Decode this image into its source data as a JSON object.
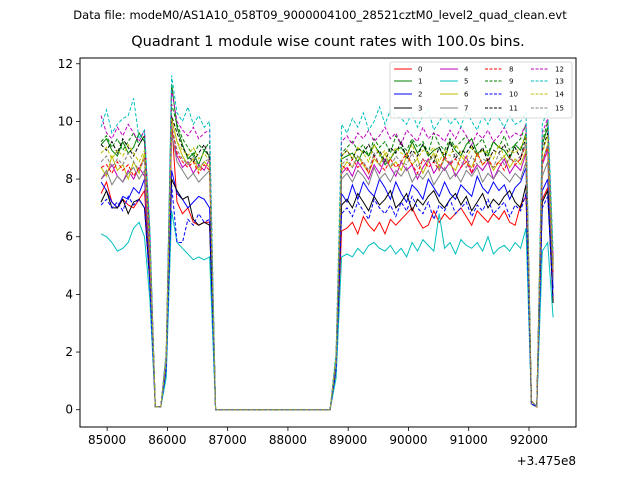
{
  "suptitle": "Data file: modeM0/AS1A10_058T09_9000004100_28521cztM0_level2_quad_clean.evt",
  "chart_data": {
    "type": "line",
    "title": "Quadrant 1 module wise count rates with 100.0s bins.",
    "xlabel": "",
    "ylabel": "",
    "x_offset_label": "+3.475e8",
    "xlim": [
      84550,
      92780
    ],
    "ylim": [
      -0.6,
      12.2
    ],
    "xticks": [
      85000,
      86000,
      87000,
      88000,
      89000,
      90000,
      91000,
      92000
    ],
    "yticks": [
      0,
      2,
      4,
      6,
      8,
      10,
      12
    ],
    "grid": false,
    "legend_position": "top-right",
    "legend_columns": 4,
    "bin_seconds": 100,
    "segments": [
      {
        "x_start": 84900,
        "x_end": 86700
      },
      {
        "x_start": 86700,
        "x_end": 88800
      },
      {
        "x_start": 88800,
        "x_end": 92400
      }
    ],
    "series": [
      {
        "name": "0",
        "color": "#ff0000",
        "dash": "solid",
        "seg1": [
          7.5,
          7.9,
          7.2,
          7.0,
          7.3,
          7.1,
          7.0,
          7.3,
          7.6,
          4.5,
          0.1,
          0.1,
          1.5,
          10.0,
          7.2,
          6.8,
          7.0,
          6.5,
          6.4,
          6.5,
          6.5
        ],
        "seg3": [
          1.4,
          6.2,
          6.3,
          6.5,
          6.1,
          6.7,
          6.4,
          6.2,
          6.5,
          6.1,
          6.6,
          6.4,
          6.6,
          6.8,
          7.0,
          6.6,
          6.3,
          6.4,
          6.9,
          6.5,
          6.8,
          6.6,
          6.8,
          7.0,
          6.7,
          6.4,
          6.9,
          6.7,
          6.5,
          6.8,
          6.6,
          6.9,
          6.5,
          6.4,
          7.1,
          7.4,
          0.2,
          0.1,
          7.3,
          7.7,
          3.8
        ]
      },
      {
        "name": "1",
        "color": "#008000",
        "dash": "solid",
        "seg1": [
          9.2,
          9.4,
          9.0,
          8.8,
          9.3,
          8.9,
          9.1,
          9.6,
          9.3,
          5.8,
          0.1,
          0.1,
          1.8,
          11.3,
          9.8,
          9.2,
          8.7,
          8.9,
          8.5,
          9.0,
          8.8
        ],
        "seg3": [
          1.8,
          8.7,
          8.8,
          8.9,
          8.6,
          9.0,
          8.8,
          9.2,
          8.9,
          8.5,
          8.7,
          9.0,
          9.1,
          8.8,
          9.3,
          8.9,
          9.2,
          8.8,
          9.0,
          9.1,
          8.7,
          9.3,
          9.0,
          8.8,
          9.2,
          9.4,
          8.9,
          9.0,
          8.8,
          9.3,
          9.1,
          9.0,
          8.7,
          9.2,
          9.0,
          9.6,
          0.3,
          0.1,
          9.2,
          9.8,
          5.0
        ]
      },
      {
        "name": "2",
        "color": "#0000ff",
        "dash": "solid",
        "seg1": [
          7.9,
          7.6,
          7.2,
          7.0,
          7.4,
          7.3,
          7.7,
          7.5,
          8.0,
          4.8,
          0.1,
          0.1,
          1.5,
          8.3,
          7.5,
          7.3,
          7.0,
          7.2,
          7.4,
          7.3,
          7.0
        ],
        "seg3": [
          1.5,
          7.5,
          7.2,
          7.8,
          7.3,
          7.9,
          7.6,
          7.4,
          8.0,
          7.7,
          7.3,
          7.9,
          7.5,
          7.2,
          7.8,
          7.6,
          7.3,
          8.0,
          7.7,
          7.4,
          7.9,
          7.5,
          7.3,
          7.8,
          7.6,
          7.4,
          8.1,
          7.7,
          7.5,
          7.9,
          7.6,
          7.8,
          7.3,
          7.7,
          7.9,
          8.4,
          0.2,
          0.1,
          7.6,
          8.0,
          4.2
        ]
      },
      {
        "name": "3",
        "color": "#000000",
        "dash": "solid",
        "seg1": [
          7.2,
          7.6,
          7.0,
          7.0,
          7.3,
          6.8,
          7.2,
          7.3,
          7.0,
          4.4,
          0.1,
          0.1,
          1.4,
          8.0,
          7.6,
          7.3,
          7.4,
          6.6,
          6.4,
          6.5,
          6.4
        ],
        "seg3": [
          1.4,
          7.1,
          7.3,
          7.0,
          7.5,
          7.2,
          6.9,
          7.4,
          7.1,
          7.3,
          7.6,
          7.0,
          7.2,
          7.5,
          6.9,
          7.3,
          7.1,
          7.4,
          7.6,
          7.2,
          7.0,
          7.3,
          7.5,
          7.1,
          7.4,
          6.9,
          7.2,
          7.5,
          7.0,
          7.3,
          7.1,
          7.4,
          7.6,
          7.2,
          7.0,
          7.8,
          0.2,
          0.1,
          7.2,
          7.6,
          3.7
        ]
      },
      {
        "name": "4",
        "color": "#bf00bf",
        "dash": "solid",
        "seg1": [
          8.0,
          8.2,
          8.5,
          8.1,
          7.9,
          8.3,
          8.0,
          8.4,
          8.1,
          5.1,
          0.1,
          0.1,
          1.6,
          9.5,
          8.8,
          8.4,
          8.6,
          8.2,
          8.5,
          8.3,
          8.7
        ],
        "seg3": [
          1.6,
          8.2,
          8.4,
          8.1,
          8.6,
          8.3,
          8.0,
          8.5,
          8.2,
          8.7,
          8.4,
          8.1,
          8.6,
          8.3,
          8.5,
          8.0,
          8.4,
          8.7,
          8.2,
          8.5,
          8.3,
          8.6,
          8.1,
          8.4,
          8.8,
          8.2,
          8.5,
          8.3,
          8.6,
          8.0,
          8.4,
          8.7,
          8.2,
          8.5,
          8.3,
          8.9,
          0.2,
          0.1,
          8.5,
          9.0,
          4.6
        ]
      },
      {
        "name": "5",
        "color": "#00bfbf",
        "dash": "solid",
        "seg1": [
          6.1,
          6.0,
          5.8,
          5.5,
          5.6,
          5.8,
          6.3,
          6.5,
          6.0,
          3.8,
          0.1,
          0.1,
          1.1,
          6.9,
          5.8,
          5.6,
          5.4,
          5.2,
          5.3,
          5.2,
          5.3
        ],
        "seg3": [
          1.1,
          5.3,
          5.4,
          5.3,
          5.6,
          5.4,
          5.7,
          5.8,
          5.6,
          5.5,
          5.7,
          5.4,
          5.6,
          5.3,
          5.8,
          5.5,
          5.9,
          5.7,
          5.5,
          6.8,
          5.6,
          5.8,
          5.4,
          5.9,
          5.7,
          5.6,
          5.8,
          5.5,
          6.0,
          5.4,
          5.6,
          5.7,
          5.5,
          5.8,
          5.6,
          6.3,
          0.2,
          0.1,
          5.5,
          5.8,
          3.2
        ]
      },
      {
        "name": "6",
        "color": "#bfbf00",
        "dash": "solid",
        "seg1": [
          8.4,
          8.1,
          8.8,
          8.3,
          8.5,
          8.0,
          8.6,
          8.2,
          8.9,
          5.4,
          0.1,
          0.1,
          1.7,
          10.1,
          9.3,
          8.8,
          8.5,
          8.7,
          8.3,
          8.6,
          8.4
        ],
        "seg3": [
          1.6,
          8.3,
          8.6,
          8.4,
          8.8,
          8.5,
          8.2,
          8.7,
          8.5,
          8.9,
          8.4,
          8.6,
          8.3,
          8.8,
          8.5,
          8.7,
          8.2,
          8.6,
          8.9,
          8.4,
          8.7,
          8.5,
          8.3,
          8.8,
          8.6,
          8.4,
          8.9,
          8.5,
          8.7,
          8.3,
          8.6,
          8.8,
          8.4,
          8.7,
          8.5,
          9.0,
          0.3,
          0.1,
          8.6,
          9.2,
          4.8
        ]
      },
      {
        "name": "7",
        "color": "#808080",
        "dash": "solid",
        "seg1": [
          8.0,
          8.3,
          7.8,
          8.1,
          7.9,
          8.2,
          8.4,
          8.0,
          8.3,
          5.0,
          0.1,
          0.1,
          1.6,
          9.6,
          8.6,
          8.3,
          8.0,
          8.2,
          7.9,
          8.1,
          8.3
        ],
        "seg3": [
          1.6,
          8.0,
          8.2,
          7.9,
          8.3,
          8.1,
          7.8,
          8.4,
          8.0,
          8.2,
          7.9,
          8.3,
          8.1,
          8.4,
          7.9,
          8.2,
          8.0,
          8.3,
          7.8,
          8.1,
          8.4,
          8.0,
          8.2,
          7.9,
          8.3,
          8.1,
          8.4,
          7.9,
          8.2,
          8.0,
          8.3,
          8.1,
          7.9,
          8.2,
          8.0,
          8.6,
          0.2,
          0.1,
          8.1,
          8.6,
          4.5
        ]
      },
      {
        "name": "8",
        "color": "#ff0000",
        "dash": "dashed",
        "seg1": [
          8.4,
          8.5,
          8.2,
          8.6,
          8.3,
          8.5,
          8.1,
          8.4,
          8.7,
          5.2,
          0.1,
          0.1,
          1.7,
          9.8,
          8.9,
          8.6,
          8.4,
          8.6,
          8.2,
          8.5,
          8.3
        ],
        "seg3": [
          1.7,
          8.5,
          8.3,
          8.7,
          8.4,
          8.6,
          8.2,
          8.8,
          8.5,
          8.3,
          8.7,
          8.4,
          8.6,
          8.9,
          8.5,
          8.2,
          8.7,
          8.4,
          8.6,
          8.3,
          8.8,
          8.5,
          8.7,
          8.4,
          8.6,
          8.2,
          8.9,
          8.5,
          8.7,
          8.4,
          8.6,
          8.3,
          8.8,
          8.5,
          8.7,
          9.2,
          0.3,
          0.1,
          8.6,
          9.1,
          4.7
        ]
      },
      {
        "name": "9",
        "color": "#008000",
        "dash": "dashed",
        "seg1": [
          9.3,
          9.5,
          9.1,
          9.4,
          9.0,
          9.3,
          9.6,
          9.2,
          9.5,
          6.0,
          0.1,
          0.1,
          1.9,
          10.6,
          9.9,
          9.4,
          9.1,
          8.8,
          9.2,
          9.0,
          9.3
        ],
        "seg3": [
          1.9,
          8.9,
          9.1,
          9.3,
          9.0,
          9.2,
          8.8,
          9.4,
          9.1,
          9.3,
          8.9,
          9.5,
          9.2,
          9.0,
          9.4,
          9.1,
          9.3,
          8.9,
          9.6,
          9.2,
          9.0,
          9.4,
          9.1,
          9.3,
          9.5,
          9.0,
          9.2,
          9.4,
          8.9,
          9.3,
          9.1,
          9.5,
          9.0,
          9.2,
          9.4,
          9.9,
          0.3,
          0.1,
          9.3,
          10.0,
          5.1
        ]
      },
      {
        "name": "10",
        "color": "#0000ff",
        "dash": "dashed",
        "seg1": [
          7.1,
          7.3,
          7.0,
          7.2,
          6.9,
          7.4,
          7.1,
          7.3,
          7.0,
          4.3,
          0.1,
          0.1,
          1.4,
          7.8,
          5.8,
          5.8,
          6.6,
          6.4,
          6.8,
          6.5,
          6.6
        ],
        "seg3": [
          1.4,
          6.8,
          7.0,
          6.7,
          7.2,
          6.9,
          6.6,
          7.3,
          7.0,
          6.8,
          7.1,
          6.7,
          7.2,
          6.9,
          7.4,
          7.0,
          6.8,
          7.2,
          6.6,
          7.1,
          6.9,
          7.3,
          6.8,
          7.0,
          7.2,
          6.7,
          7.1,
          6.9,
          7.3,
          6.8,
          7.0,
          7.2,
          6.7,
          7.1,
          6.9,
          7.5,
          0.2,
          0.1,
          7.0,
          7.4,
          3.9
        ]
      },
      {
        "name": "11",
        "color": "#000000",
        "dash": "dashed",
        "seg1": [
          9.2,
          9.0,
          9.3,
          8.9,
          9.4,
          9.1,
          8.8,
          9.2,
          9.5,
          5.9,
          0.1,
          0.1,
          1.8,
          10.2,
          9.6,
          9.1,
          8.8,
          8.6,
          8.9,
          9.2,
          8.7
        ],
        "seg3": [
          1.8,
          8.8,
          9.0,
          8.7,
          9.1,
          8.9,
          9.2,
          8.8,
          9.0,
          8.6,
          9.1,
          8.9,
          9.3,
          8.7,
          9.0,
          8.8,
          9.2,
          8.9,
          8.6,
          9.1,
          8.8,
          9.3,
          8.7,
          9.0,
          8.9,
          9.2,
          8.8,
          9.1,
          8.6,
          9.0,
          8.9,
          9.2,
          8.8,
          9.1,
          8.7,
          9.5,
          0.3,
          0.1,
          9.0,
          9.6,
          5.0
        ]
      },
      {
        "name": "12",
        "color": "#bf00bf",
        "dash": "dashed",
        "seg1": [
          10.2,
          9.6,
          9.4,
          9.8,
          9.5,
          9.9,
          9.6,
          9.3,
          9.7,
          6.1,
          0.1,
          0.1,
          1.9,
          11.1,
          10.0,
          9.7,
          9.5,
          9.8,
          9.4,
          9.6,
          9.7
        ],
        "seg3": [
          1.9,
          9.3,
          9.5,
          9.2,
          9.6,
          9.4,
          9.7,
          9.3,
          9.5,
          9.8,
          9.4,
          9.6,
          9.2,
          9.7,
          9.5,
          9.3,
          9.8,
          9.4,
          9.6,
          9.5,
          9.3,
          9.7,
          9.4,
          9.8,
          9.5,
          9.2,
          9.6,
          9.4,
          9.7,
          9.3,
          9.5,
          9.8,
          9.4,
          9.6,
          9.5,
          9.9,
          0.3,
          0.1,
          9.6,
          10.1,
          5.3
        ]
      },
      {
        "name": "13",
        "color": "#00bfbf",
        "dash": "dashed",
        "seg1": [
          9.8,
          10.4,
          9.6,
          9.9,
          10.1,
          10.2,
          10.8,
          9.4,
          9.7,
          6.3,
          0.1,
          0.1,
          2.0,
          11.6,
          10.3,
          10.0,
          10.5,
          9.9,
          10.2,
          9.8,
          10.0
        ],
        "seg3": [
          2.0,
          9.9,
          9.6,
          10.1,
          9.8,
          10.3,
          9.7,
          10.0,
          10.5,
          9.9,
          10.4,
          10.2,
          10.1,
          9.9,
          10.3,
          9.8,
          10.2,
          10.4,
          9.7,
          10.0,
          10.3,
          9.9,
          10.1,
          9.8,
          10.4,
          10.0,
          9.7,
          10.2,
          9.9,
          10.3,
          10.1,
          9.8,
          10.2,
          9.9,
          10.0,
          10.3,
          0.3,
          0.1,
          9.9,
          10.4,
          5.5
        ]
      },
      {
        "name": "14",
        "color": "#bfbf00",
        "dash": "dashed",
        "seg1": [
          8.9,
          9.1,
          8.7,
          9.0,
          8.8,
          9.2,
          8.9,
          8.6,
          9.0,
          5.6,
          0.1,
          0.1,
          1.8,
          10.1,
          9.3,
          9.0,
          8.8,
          9.1,
          8.7,
          8.9,
          8.6
        ],
        "seg3": [
          1.8,
          8.8,
          9.0,
          8.7,
          9.1,
          8.9,
          8.6,
          9.2,
          8.8,
          9.0,
          8.7,
          9.1,
          8.9,
          8.8,
          9.2,
          8.7,
          9.0,
          8.9,
          9.1,
          8.6,
          9.0,
          8.8,
          9.2,
          8.9,
          8.7,
          9.1,
          8.8,
          9.0,
          8.9,
          8.7,
          9.2,
          8.8,
          9.0,
          8.9,
          9.1,
          9.5,
          0.3,
          0.1,
          8.9,
          9.5,
          4.9
        ]
      },
      {
        "name": "15",
        "color": "#808080",
        "dash": "dashed",
        "seg1": [
          8.6,
          8.8,
          8.4,
          8.7,
          8.5,
          8.9,
          8.6,
          8.3,
          8.7,
          5.4,
          0.1,
          0.1,
          1.7,
          9.9,
          9.0,
          8.7,
          8.5,
          8.8,
          8.4,
          8.6,
          8.7
        ],
        "seg3": [
          1.7,
          8.5,
          8.7,
          8.4,
          8.8,
          8.6,
          8.3,
          8.9,
          8.5,
          8.7,
          8.4,
          8.8,
          8.6,
          8.5,
          8.9,
          8.4,
          8.7,
          8.6,
          8.8,
          8.3,
          8.7,
          8.5,
          8.9,
          8.6,
          8.4,
          8.8,
          8.5,
          8.7,
          8.6,
          8.4,
          8.9,
          8.5,
          8.7,
          8.6,
          8.8,
          9.2,
          0.3,
          0.1,
          8.6,
          9.2,
          4.8
        ]
      }
    ]
  }
}
